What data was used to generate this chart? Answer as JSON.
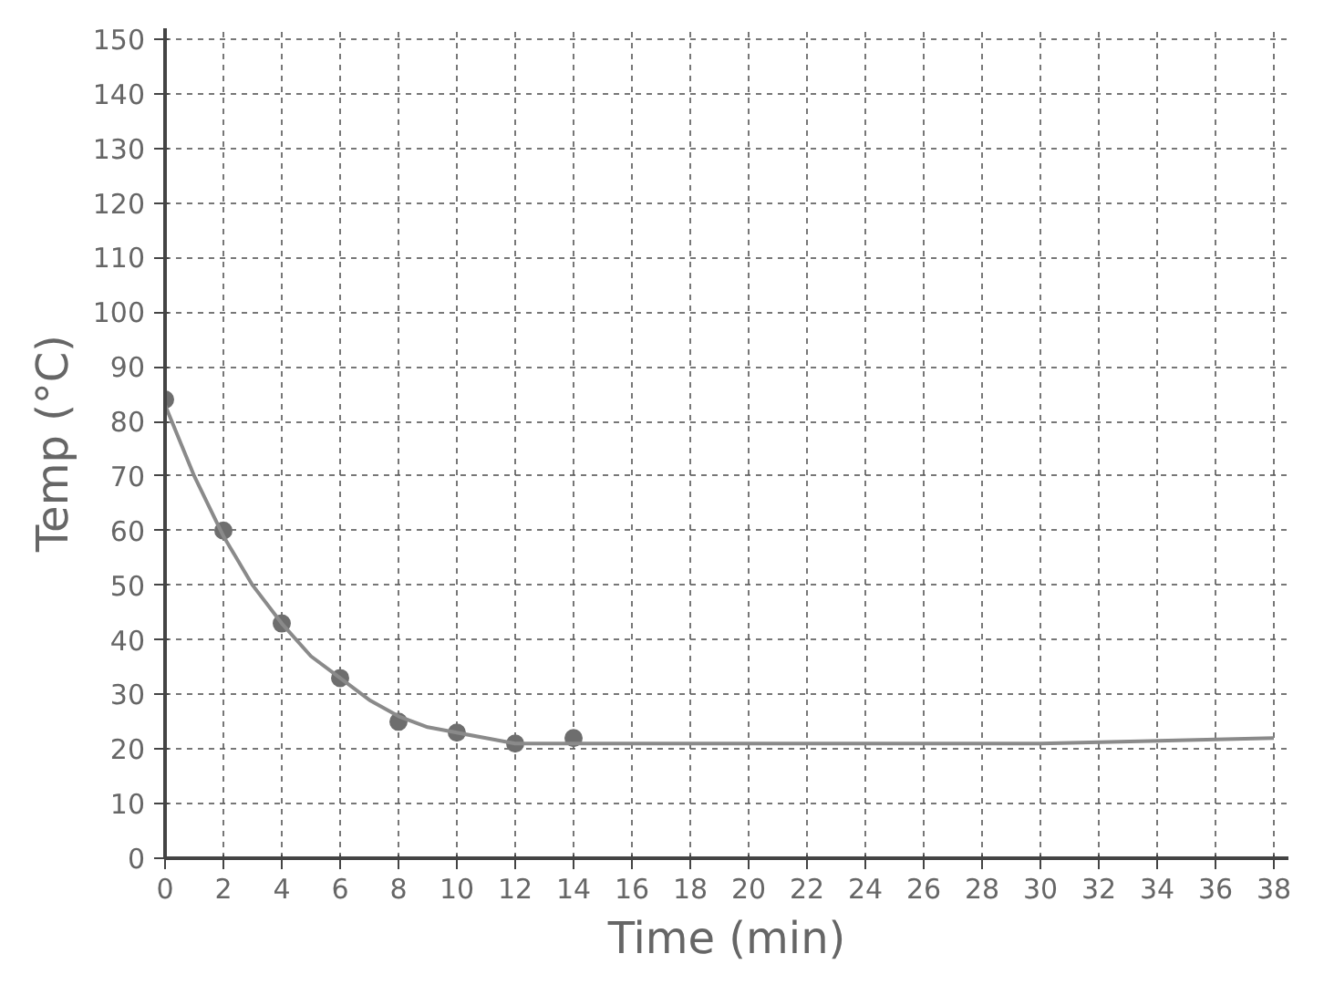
{
  "chart_data": {
    "type": "scatter",
    "xlabel": "Time (min)",
    "ylabel": "Temp (°C)",
    "xlim": [
      0,
      38.5
    ],
    "ylim": [
      0,
      152
    ],
    "xticks": [
      0,
      2,
      4,
      6,
      8,
      10,
      12,
      14,
      16,
      18,
      20,
      22,
      24,
      26,
      28,
      30,
      32,
      34,
      36,
      38
    ],
    "yticks": [
      0,
      10,
      20,
      30,
      40,
      50,
      60,
      70,
      80,
      90,
      100,
      110,
      120,
      130,
      140,
      150
    ],
    "grid": true,
    "series": [
      {
        "marker": "circle",
        "color": "#6e6e6e",
        "x": [
          0,
          2,
          4,
          6,
          8,
          10,
          12,
          14
        ],
        "values": [
          84,
          60,
          43,
          33,
          25,
          23,
          21,
          22
        ]
      },
      {
        "type": "line",
        "marker": "none",
        "color": "#8a8a8a",
        "line_style": "solid",
        "x": [
          0,
          1,
          2,
          3,
          4,
          5,
          6,
          7,
          8,
          9,
          10,
          11,
          12,
          14,
          20,
          30,
          38
        ],
        "values": [
          83,
          70,
          59,
          50,
          43,
          37,
          33,
          29,
          26,
          24,
          23,
          22,
          21,
          21,
          21,
          21,
          22
        ]
      }
    ]
  }
}
